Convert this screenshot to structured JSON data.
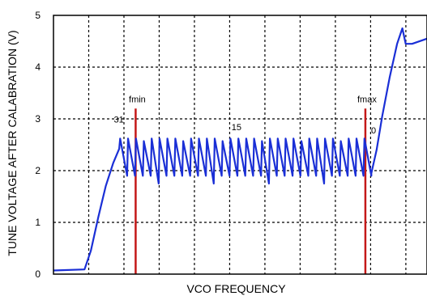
{
  "chart_data": {
    "type": "line",
    "title": "",
    "xlabel": "VCO FREQUENCY",
    "ylabel": "TUNE VOLTAGE AFTER CALABRATION (V)",
    "ylim": [
      0,
      5
    ],
    "y_ticks": [
      "0",
      "1",
      "2",
      "3",
      "4",
      "5"
    ],
    "x_tick_labels": [],
    "grid": true,
    "legend": "none",
    "line_color": "#1a2fd6",
    "marker_color": "#c41818",
    "x_note": "x axis has no printed scale; x values below are relative positions 0-100",
    "markers": [
      {
        "label": "fmin",
        "x": 22.0
      },
      {
        "label": "fmax",
        "x": 83.5
      }
    ],
    "band_labels": [
      {
        "text": "31",
        "x": 17.5,
        "y": 2.93
      },
      {
        "text": "15",
        "x": 49.0,
        "y": 2.78
      },
      {
        "text": "0",
        "x": 85.7,
        "y": 2.72
      }
    ],
    "series": [
      {
        "values_x": [
          0,
          8.3,
          10,
          12,
          14,
          16,
          17.6
        ],
        "values_y": [
          0.07,
          0.09,
          0.45,
          1.1,
          1.7,
          2.15,
          2.42
        ],
        "sawtooth": {
          "x_start": 17.6,
          "x_end": 85.1,
          "teeth": 32,
          "low": 1.9,
          "high": 2.62
        },
        "rise_x": [
          85.1,
          86.5,
          88,
          90,
          92,
          93.4,
          94.3,
          96,
          100
        ],
        "rise_y": [
          1.95,
          2.4,
          3.05,
          3.8,
          4.45,
          4.75,
          4.45,
          4.45,
          4.55
        ]
      }
    ]
  }
}
